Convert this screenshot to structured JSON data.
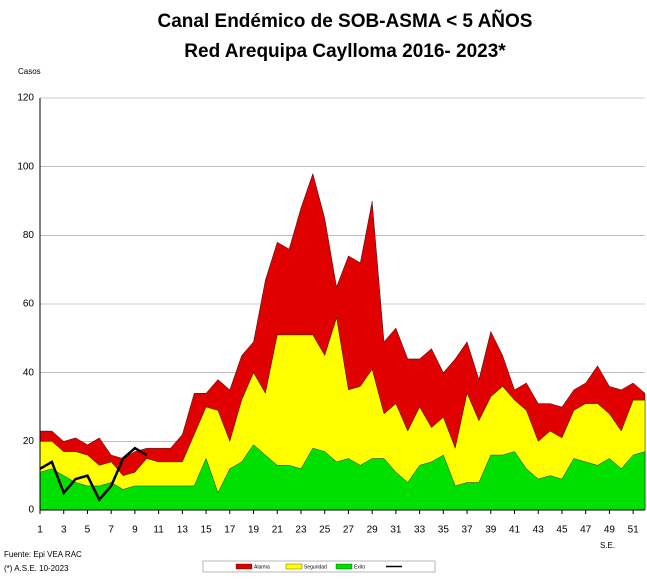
{
  "chart_data": {
    "type": "endemic-channel",
    "title": "Canal Endémico de SOB-ASMA < 5 AÑOS",
    "subtitle": "Red Arequipa Caylloma 2016- 2023*",
    "ylabel": "Casos",
    "xlabel": "S.E.",
    "source": "Fuente: Epi VEA RAC",
    "note": "(*) A.S.E. 10-2023",
    "x": [
      1,
      2,
      3,
      4,
      5,
      6,
      7,
      8,
      9,
      10,
      11,
      12,
      13,
      14,
      15,
      16,
      17,
      18,
      19,
      20,
      21,
      22,
      23,
      24,
      25,
      26,
      27,
      28,
      29,
      30,
      31,
      32,
      33,
      34,
      35,
      36,
      37,
      38,
      39,
      40,
      41,
      42,
      43,
      44,
      45,
      46,
      47,
      48,
      49,
      50,
      51,
      52
    ],
    "xlim": [
      1,
      52
    ],
    "xticks": [
      1,
      3,
      5,
      7,
      9,
      11,
      13,
      15,
      17,
      19,
      21,
      23,
      25,
      27,
      29,
      31,
      33,
      35,
      37,
      39,
      41,
      43,
      45,
      47,
      49,
      51
    ],
    "ylim": [
      0,
      120
    ],
    "yticks": [
      0,
      20,
      40,
      60,
      80,
      100,
      120
    ],
    "grid": true,
    "series": [
      {
        "name": "Alarma",
        "color": "#e00000",
        "kind": "area",
        "values": [
          23,
          23,
          20,
          21,
          19,
          21,
          16,
          15,
          17,
          18,
          18,
          18,
          22,
          34,
          34,
          38,
          35,
          45,
          49,
          67,
          78,
          76,
          88,
          98,
          85,
          65,
          74,
          72,
          90,
          49,
          53,
          44,
          44,
          47,
          40,
          44,
          49,
          38,
          52,
          45,
          35,
          37,
          31,
          31,
          30,
          35,
          37,
          42,
          36,
          35,
          37,
          34
        ]
      },
      {
        "name": "Seguridad",
        "color": "#ffff00",
        "kind": "area",
        "values": [
          20,
          20,
          17,
          17,
          16,
          13,
          14,
          10,
          11,
          15,
          14,
          14,
          14,
          22,
          30,
          29,
          20,
          32,
          40,
          34,
          51,
          51,
          51,
          51,
          45,
          56,
          35,
          36,
          41,
          28,
          31,
          23,
          30,
          24,
          27,
          18,
          34,
          26,
          33,
          36,
          32,
          29,
          20,
          23,
          21,
          29,
          31,
          31,
          28,
          23,
          32,
          32
        ]
      },
      {
        "name": "Exito",
        "color": "#00e000",
        "kind": "area",
        "values": [
          11,
          12,
          10,
          8,
          7,
          7,
          8,
          6,
          7,
          7,
          7,
          7,
          7,
          7,
          15,
          5,
          12,
          14,
          19,
          16,
          13,
          13,
          12,
          18,
          17,
          14,
          15,
          13,
          15,
          15,
          11,
          8,
          13,
          14,
          16,
          7,
          8,
          8,
          16,
          16,
          17,
          12,
          9,
          10,
          9,
          15,
          14,
          13,
          15,
          12,
          16,
          17
        ]
      },
      {
        "color": "#000000",
        "kind": "line",
        "values": [
          12,
          14,
          5,
          9,
          10,
          3,
          7,
          15,
          18,
          16,
          null,
          null,
          null,
          null,
          null,
          null,
          null,
          null,
          null,
          null,
          null,
          null,
          null,
          null,
          null,
          null,
          null,
          null,
          null,
          null,
          null,
          null,
          null,
          null,
          null,
          null,
          null,
          null,
          null,
          null,
          null,
          null,
          null,
          null,
          null,
          null,
          null,
          null,
          null,
          null,
          null,
          null
        ]
      }
    ]
  }
}
